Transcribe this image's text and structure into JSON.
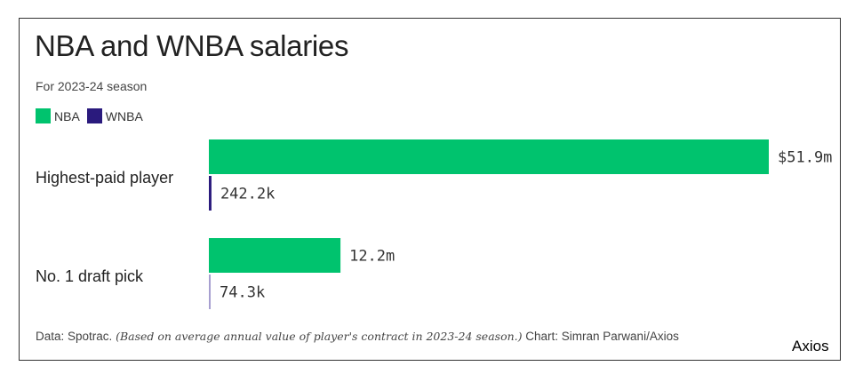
{
  "chart_data": {
    "type": "bar",
    "orientation": "horizontal",
    "title": "NBA and WNBA salaries",
    "subtitle": "For 2023-24 season",
    "categories": [
      "Highest-paid player",
      "No. 1 draft pick"
    ],
    "series": [
      {
        "name": "NBA",
        "color": "#00c36e",
        "values": [
          51900000,
          12200000
        ],
        "labels": [
          "$51.9m",
          "12.2m"
        ]
      },
      {
        "name": "WNBA",
        "color": "#2a1a7d",
        "values": [
          242200,
          74300
        ],
        "labels": [
          "242.2k",
          "74.3k"
        ]
      }
    ],
    "xlim": [
      0,
      51900000
    ],
    "grid": false,
    "legend_position": "top-left"
  },
  "footer": {
    "source": "Data: Spotrac.",
    "note": "(Based on average annual value of player's contract in 2023-24 season.)",
    "credit": "Chart: Simran Parwani/Axios"
  },
  "brand": "Axios"
}
